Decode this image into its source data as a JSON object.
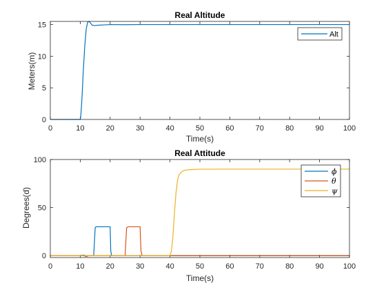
{
  "chart_data": [
    {
      "type": "line",
      "title": "Real Altitude",
      "xlabel": "Time(s)",
      "ylabel": "Meters(m)",
      "xlim": [
        0,
        100
      ],
      "ylim": [
        0,
        15.5
      ],
      "xticks": [
        "0",
        "10",
        "20",
        "30",
        "40",
        "50",
        "60",
        "70",
        "80",
        "90",
        "100"
      ],
      "yticks": [
        "0",
        "5",
        "10",
        "15"
      ],
      "grid": false,
      "legend": "top-right",
      "series": [
        {
          "name": "Alt",
          "color": "#0072BD",
          "x": [
            0,
            10,
            10.2,
            10.6,
            11,
            11.5,
            12,
            12.5,
            13,
            13.5,
            14,
            15,
            16,
            18,
            20,
            25,
            30,
            40,
            50,
            60,
            70,
            80,
            90,
            100
          ],
          "y": [
            0,
            0,
            0.6,
            3.5,
            7.5,
            11.5,
            14.3,
            15.4,
            15.5,
            15.2,
            14.9,
            14.85,
            14.9,
            14.95,
            15,
            14.98,
            15,
            15,
            15,
            15,
            15,
            15,
            15,
            15
          ]
        }
      ]
    },
    {
      "type": "line",
      "title": "Real Attitude",
      "xlabel": "Time(s)",
      "ylabel": "Degrees(d)",
      "xlim": [
        0,
        100
      ],
      "ylim": [
        -2,
        100
      ],
      "xticks": [
        "0",
        "10",
        "20",
        "30",
        "40",
        "50",
        "60",
        "70",
        "80",
        "90",
        "100"
      ],
      "yticks": [
        "0",
        "50",
        "100"
      ],
      "grid": false,
      "legend": "top-right",
      "series": [
        {
          "name": "ϕ",
          "color": "#0072BD",
          "x": [
            0,
            10,
            11,
            12,
            14.5,
            15,
            15.3,
            20,
            20.2,
            20.5,
            100
          ],
          "y": [
            0,
            0,
            0.5,
            0,
            0,
            29,
            30,
            30,
            5,
            0,
            0
          ]
        },
        {
          "name": "θ",
          "color": "#D95319",
          "x": [
            0,
            11,
            12,
            13,
            25,
            25.5,
            26,
            30,
            30.3,
            30.7,
            100
          ],
          "y": [
            0,
            0,
            -1,
            0,
            0,
            29,
            30,
            30,
            5,
            0,
            0
          ]
        },
        {
          "name": "ψ",
          "color": "#EDB120",
          "x": [
            0,
            40,
            40.5,
            41,
            41.5,
            42,
            42.5,
            43,
            44,
            45,
            46,
            48,
            50,
            60,
            70,
            80,
            90,
            100
          ],
          "y": [
            0,
            0,
            5,
            20,
            45,
            65,
            78,
            84,
            87.5,
            88.8,
            89.3,
            89.7,
            89.9,
            90,
            90,
            90,
            90,
            90
          ]
        }
      ]
    }
  ]
}
